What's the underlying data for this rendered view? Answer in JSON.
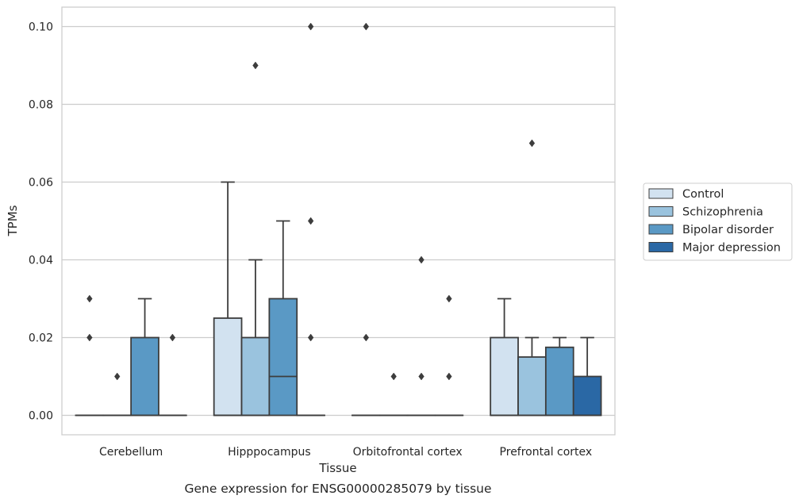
{
  "chart_data": {
    "type": "box",
    "xlabel": "Tissue",
    "ylabel": "TPMs",
    "caption": "Gene expression for ENSG00000285079 by tissue",
    "ylim": [
      -0.005,
      0.105
    ],
    "yticks": [
      0.0,
      0.02,
      0.04,
      0.06,
      0.08,
      0.1
    ],
    "ytick_labels": [
      "0.00",
      "0.02",
      "0.04",
      "0.06",
      "0.08",
      "0.10"
    ],
    "grid": true,
    "legend_position": "right",
    "categories": [
      "Cerebellum",
      "Hipppocampus",
      "Orbitofrontal cortex",
      "Prefrontal cortex"
    ],
    "series": [
      {
        "name": "Control",
        "color": "#d2e2f0",
        "boxes": [
          {
            "q1": 0.0,
            "median": 0.0,
            "q3": 0.0,
            "whislo": 0.0,
            "whishi": 0.0,
            "fliers": [
              0.03,
              0.02
            ]
          },
          {
            "q1": 0.0,
            "median": 0.0,
            "q3": 0.025,
            "whislo": 0.0,
            "whishi": 0.06,
            "fliers": []
          },
          {
            "q1": 0.0,
            "median": 0.0,
            "q3": 0.0,
            "whislo": 0.0,
            "whishi": 0.0,
            "fliers": [
              0.1,
              0.02
            ]
          },
          {
            "q1": 0.0,
            "median": 0.0,
            "q3": 0.02,
            "whislo": 0.0,
            "whishi": 0.03,
            "fliers": []
          }
        ]
      },
      {
        "name": "Schizophrenia",
        "color": "#9ac3de",
        "boxes": [
          {
            "q1": 0.0,
            "median": 0.0,
            "q3": 0.0,
            "whislo": 0.0,
            "whishi": 0.0,
            "fliers": [
              0.01
            ]
          },
          {
            "q1": 0.0,
            "median": 0.0,
            "q3": 0.02,
            "whislo": 0.0,
            "whishi": 0.04,
            "fliers": [
              0.09
            ]
          },
          {
            "q1": 0.0,
            "median": 0.0,
            "q3": 0.0,
            "whislo": 0.0,
            "whishi": 0.0,
            "fliers": [
              0.01
            ]
          },
          {
            "q1": 0.0,
            "median": 0.0,
            "q3": 0.015,
            "whislo": 0.0,
            "whishi": 0.02,
            "fliers": [
              0.07
            ]
          }
        ]
      },
      {
        "name": "Bipolar disorder",
        "color": "#5a99c5",
        "boxes": [
          {
            "q1": 0.0,
            "median": 0.0,
            "q3": 0.02,
            "whislo": 0.0,
            "whishi": 0.03,
            "fliers": []
          },
          {
            "q1": 0.0,
            "median": 0.01,
            "q3": 0.03,
            "whislo": 0.0,
            "whishi": 0.05,
            "fliers": []
          },
          {
            "q1": 0.0,
            "median": 0.0,
            "q3": 0.0,
            "whislo": 0.0,
            "whishi": 0.0,
            "fliers": [
              0.04,
              0.01
            ]
          },
          {
            "q1": 0.0,
            "median": 0.0,
            "q3": 0.0175,
            "whislo": 0.0,
            "whishi": 0.02,
            "fliers": []
          }
        ]
      },
      {
        "name": "Major depression",
        "color": "#2a68a5",
        "boxes": [
          {
            "q1": 0.0,
            "median": 0.0,
            "q3": 0.0,
            "whislo": 0.0,
            "whishi": 0.0,
            "fliers": [
              0.02
            ]
          },
          {
            "q1": 0.0,
            "median": 0.0,
            "q3": 0.0,
            "whislo": 0.0,
            "whishi": 0.0,
            "fliers": [
              0.1,
              0.05,
              0.02
            ]
          },
          {
            "q1": 0.0,
            "median": 0.0,
            "q3": 0.0,
            "whislo": 0.0,
            "whishi": 0.0,
            "fliers": [
              0.03,
              0.01
            ]
          },
          {
            "q1": 0.0,
            "median": 0.0,
            "q3": 0.01,
            "whislo": 0.0,
            "whishi": 0.02,
            "fliers": []
          }
        ]
      }
    ]
  }
}
